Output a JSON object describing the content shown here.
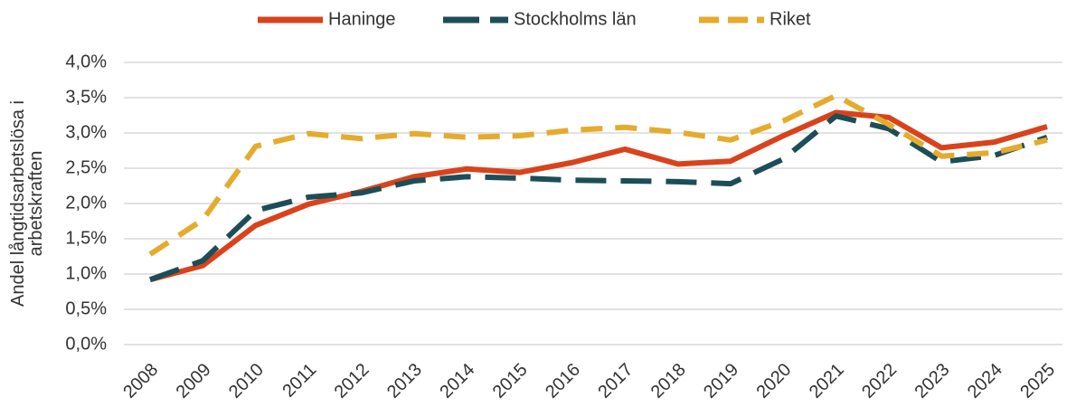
{
  "chart_data": {
    "type": "line",
    "ylabel": "Andel långtidsarbetslösa i arbetskraften",
    "categories": [
      "2008",
      "2009",
      "2010",
      "2011",
      "2012",
      "2013",
      "2014",
      "2015",
      "2016",
      "2017",
      "2018",
      "2019",
      "2020",
      "2021",
      "2022",
      "2023",
      "2024",
      "2025"
    ],
    "series": [
      {
        "name": "Haninge",
        "color": "#d9431b",
        "dash": "solid",
        "values": [
          0.92,
          1.12,
          1.69,
          1.99,
          2.17,
          2.38,
          2.49,
          2.44,
          2.58,
          2.77,
          2.56,
          2.6,
          2.96,
          3.29,
          3.22,
          2.79,
          2.87,
          3.09
        ]
      },
      {
        "name": "Stockholms län",
        "color": "#1d4e57",
        "dash": "long-dash",
        "values": [
          0.92,
          1.19,
          1.9,
          2.09,
          2.15,
          2.32,
          2.38,
          2.36,
          2.33,
          2.32,
          2.31,
          2.28,
          2.63,
          3.24,
          3.06,
          2.59,
          2.68,
          2.94
        ]
      },
      {
        "name": "Riket",
        "color": "#e5ab2c",
        "dash": "dash",
        "values": [
          1.28,
          1.77,
          2.81,
          2.99,
          2.92,
          2.99,
          2.94,
          2.96,
          3.04,
          3.08,
          3.01,
          2.9,
          3.17,
          3.53,
          3.12,
          2.67,
          2.72,
          2.9
        ]
      }
    ],
    "ylim": [
      0,
      4
    ],
    "yticks": [
      {
        "value": 0,
        "label": "0,0%"
      },
      {
        "value": 0.5,
        "label": "0,5%"
      },
      {
        "value": 1,
        "label": "1,0%"
      },
      {
        "value": 1.5,
        "label": "1,5%"
      },
      {
        "value": 2,
        "label": "2,0%"
      },
      {
        "value": 2.5,
        "label": "2,5%"
      },
      {
        "value": 3,
        "label": "3,0%"
      },
      {
        "value": 3.5,
        "label": "3,5%"
      },
      {
        "value": 4,
        "label": "4,0%"
      }
    ],
    "grid": true,
    "legend": "top"
  }
}
